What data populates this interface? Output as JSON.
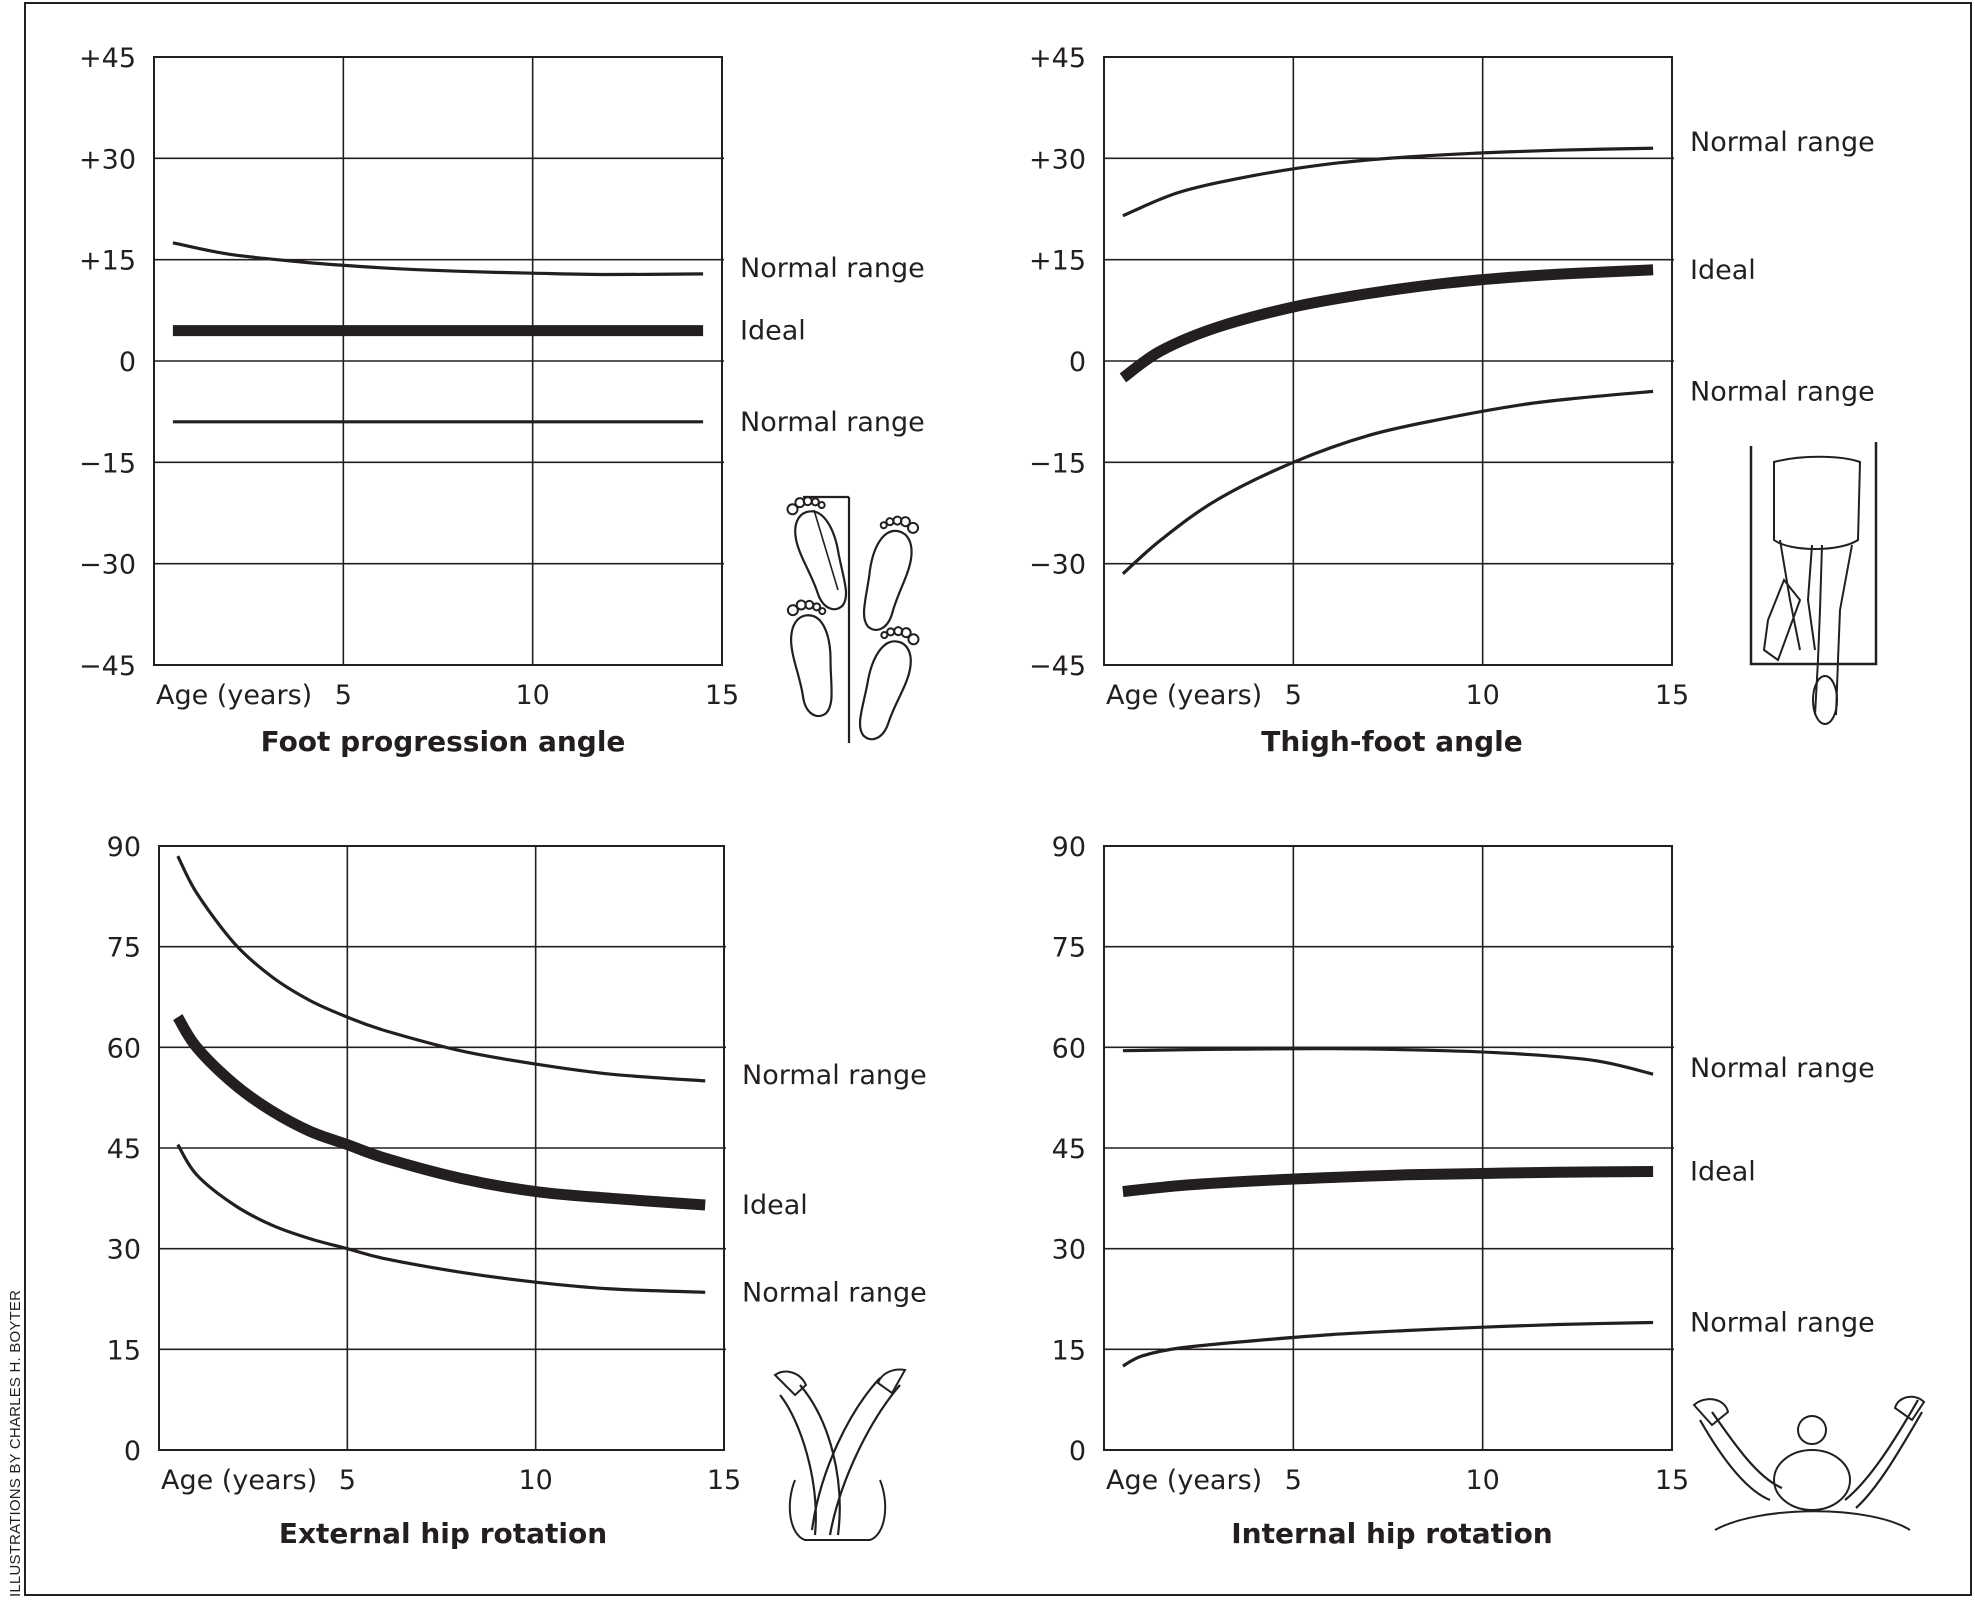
{
  "credit": "ILLUSTRATIONS BY CHARLES H. BOYTER",
  "colors": {
    "ink": "#231f20",
    "background": "#ffffff"
  },
  "chart_data": [
    {
      "type": "line",
      "title": "Foot progression angle",
      "xlabel": "Age (years)",
      "xlim": [
        0,
        15
      ],
      "xticks": [
        "5",
        "10",
        "15"
      ],
      "ylim": [
        -45,
        45
      ],
      "yticks": [
        "+45",
        "+30",
        "+15",
        "0",
        "−15",
        "−30",
        "−45"
      ],
      "grid": true,
      "illustration": "feet-footprints-illustration",
      "series": [
        {
          "name": "Normal range",
          "role": "upper",
          "x": [
            0.5,
            2,
            4,
            6,
            8,
            10,
            12,
            14.5
          ],
          "y": [
            17.5,
            15.8,
            14.6,
            13.8,
            13.3,
            13.0,
            12.8,
            12.9
          ]
        },
        {
          "name": "Ideal",
          "role": "ideal",
          "x": [
            0.5,
            14.5
          ],
          "y": [
            4.5,
            4.5
          ]
        },
        {
          "name": "Normal range",
          "role": "lower",
          "x": [
            0.5,
            14.5
          ],
          "y": [
            -9,
            -9
          ]
        }
      ]
    },
    {
      "type": "line",
      "title": "Thigh-foot angle",
      "xlabel": "Age (years)",
      "xlim": [
        0,
        15
      ],
      "xticks": [
        "5",
        "10",
        "15"
      ],
      "ylim": [
        -45,
        45
      ],
      "yticks": [
        "+45",
        "+30",
        "+15",
        "0",
        "−15",
        "−30",
        "−45"
      ],
      "grid": true,
      "illustration": "prone-legs-illustration",
      "series": [
        {
          "name": "Normal range",
          "role": "upper",
          "x": [
            0.5,
            2,
            4,
            6,
            8,
            10,
            12,
            14.5
          ],
          "y": [
            21.5,
            25,
            27.5,
            29.2,
            30.2,
            30.8,
            31.2,
            31.5
          ]
        },
        {
          "name": "Ideal",
          "role": "ideal",
          "x": [
            0.5,
            1.5,
            3,
            5,
            7,
            9,
            11,
            12.5,
            14.5
          ],
          "y": [
            -2.5,
            1.5,
            5,
            8,
            10,
            11.5,
            12.5,
            13,
            13.5
          ]
        },
        {
          "name": "Normal range",
          "role": "lower",
          "x": [
            0.5,
            1.5,
            3,
            5,
            7,
            9,
            11,
            12.5,
            14.5
          ],
          "y": [
            -31.5,
            -26.5,
            -20.5,
            -15,
            -11,
            -8.5,
            -6.5,
            -5.5,
            -4.5
          ]
        }
      ]
    },
    {
      "type": "line",
      "title": "External hip rotation",
      "xlabel": "Age (years)",
      "xlim": [
        0,
        15
      ],
      "xticks": [
        "5",
        "10",
        "15"
      ],
      "ylim": [
        0,
        90
      ],
      "yticks": [
        "90",
        "75",
        "60",
        "45",
        "30",
        "15",
        "0"
      ],
      "grid": true,
      "illustration": "crossed-legs-illustration",
      "series": [
        {
          "name": "Normal range",
          "role": "upper",
          "x": [
            0.5,
            1,
            2,
            3,
            4,
            5,
            6,
            8,
            10,
            12,
            14.5
          ],
          "y": [
            88.5,
            83,
            75.5,
            70.5,
            67,
            64.5,
            62.5,
            59.5,
            57.5,
            56,
            55
          ]
        },
        {
          "name": "Ideal",
          "role": "ideal",
          "x": [
            0.5,
            1,
            2,
            3,
            4,
            5,
            6,
            8,
            10,
            12,
            14.5
          ],
          "y": [
            64.5,
            60,
            54.5,
            50.5,
            47.5,
            45.5,
            43.5,
            40.5,
            38.5,
            37.5,
            36.5
          ]
        },
        {
          "name": "Normal range",
          "role": "lower",
          "x": [
            0.5,
            1,
            2,
            3,
            4,
            5,
            6,
            8,
            10,
            12,
            14.5
          ],
          "y": [
            45.5,
            41,
            36.5,
            33.5,
            31.5,
            30,
            28.5,
            26.5,
            25,
            24,
            23.5
          ]
        }
      ]
    },
    {
      "type": "line",
      "title": "Internal hip rotation",
      "xlabel": "Age (years)",
      "xlim": [
        0,
        15
      ],
      "xticks": [
        "5",
        "10",
        "15"
      ],
      "ylim": [
        0,
        90
      ],
      "yticks": [
        "90",
        "75",
        "60",
        "45",
        "30",
        "15",
        "0"
      ],
      "grid": true,
      "illustration": "spread-legs-illustration",
      "series": [
        {
          "name": "Normal range",
          "role": "upper",
          "x": [
            0.5,
            3,
            6,
            9,
            11,
            13,
            14.5
          ],
          "y": [
            59.5,
            59.7,
            59.8,
            59.5,
            59,
            58,
            56
          ]
        },
        {
          "name": "Ideal",
          "role": "ideal",
          "x": [
            0.5,
            2,
            4,
            6,
            8,
            10,
            12,
            14.5
          ],
          "y": [
            38.5,
            39.4,
            40.1,
            40.6,
            41,
            41.2,
            41.4,
            41.5
          ]
        },
        {
          "name": "Normal range",
          "role": "lower",
          "x": [
            0.5,
            1,
            2,
            4,
            6,
            8,
            10,
            12,
            14.5
          ],
          "y": [
            12.5,
            14,
            15.2,
            16.3,
            17.2,
            17.8,
            18.3,
            18.7,
            19
          ]
        }
      ]
    }
  ]
}
